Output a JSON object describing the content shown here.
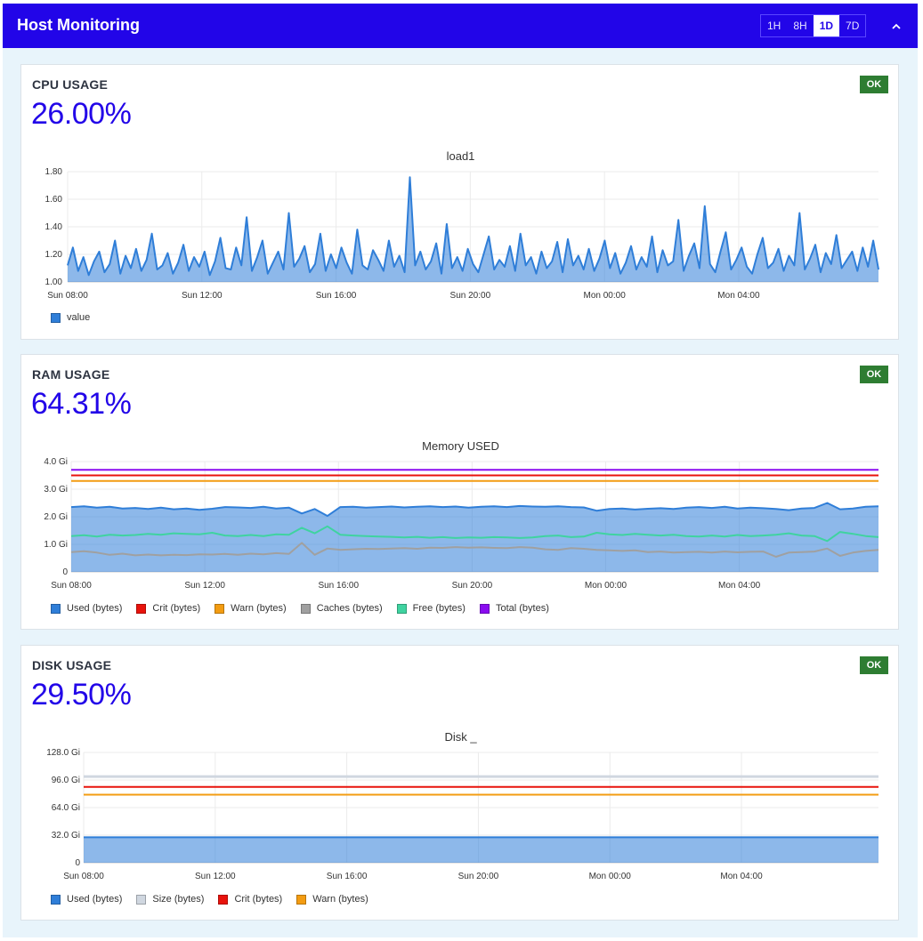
{
  "header": {
    "title": "Host Monitoring",
    "ranges": [
      "1H",
      "8H",
      "1D",
      "7D"
    ],
    "active_range": "1D",
    "collapse_icon": "chevron-up-icon"
  },
  "colors": {
    "header_bg": "#2205e8",
    "accent": "#2205e8",
    "ok_badge": "#2e7d32",
    "used": "#2f7ed8",
    "crit": "#e8130c",
    "warn": "#f39c12",
    "caches": "#a0a0a0",
    "free": "#3fd3a0",
    "total": "#8a0cf0",
    "size": "#d0d7e0"
  },
  "cards": [
    {
      "title": "CPU USAGE",
      "value": "26.00%",
      "status": "OK",
      "chart_title": "load1",
      "legend": [
        "value"
      ]
    },
    {
      "title": "RAM USAGE",
      "value": "64.31%",
      "status": "OK",
      "chart_title": "Memory USED",
      "legend": [
        "Used (bytes)",
        "Crit (bytes)",
        "Warn (bytes)",
        "Caches (bytes)",
        "Free (bytes)",
        "Total (bytes)"
      ]
    },
    {
      "title": "DISK USAGE",
      "value": "29.50%",
      "status": "OK",
      "chart_title": "Disk _",
      "legend": [
        "Used (bytes)",
        "Size (bytes)",
        "Crit (bytes)",
        "Warn (bytes)"
      ]
    }
  ],
  "chart_data": [
    {
      "type": "area",
      "title": "load1",
      "x_ticks": [
        "Sun 08:00",
        "Sun 12:00",
        "Sun 16:00",
        "Sun 20:00",
        "Mon 00:00",
        "Mon 04:00"
      ],
      "x_range": [
        "Sun 08:00",
        "Mon 07:40"
      ],
      "ylim": [
        1.0,
        1.8
      ],
      "y_ticks": [
        "1.00",
        "1.20",
        "1.40",
        "1.60",
        "1.80"
      ],
      "grid": true,
      "legend_position": "bottom-left",
      "series": [
        {
          "name": "value",
          "color": "#2f7ed8",
          "values": [
            1.12,
            1.25,
            1.08,
            1.18,
            1.05,
            1.15,
            1.22,
            1.07,
            1.13,
            1.3,
            1.06,
            1.19,
            1.1,
            1.24,
            1.08,
            1.16,
            1.35,
            1.09,
            1.12,
            1.21,
            1.06,
            1.14,
            1.27,
            1.08,
            1.18,
            1.11,
            1.22,
            1.05,
            1.15,
            1.32,
            1.1,
            1.09,
            1.25,
            1.12,
            1.47,
            1.08,
            1.18,
            1.3,
            1.06,
            1.14,
            1.22,
            1.09,
            1.5,
            1.11,
            1.17,
            1.26,
            1.07,
            1.13,
            1.35,
            1.08,
            1.2,
            1.1,
            1.25,
            1.14,
            1.06,
            1.38,
            1.12,
            1.09,
            1.23,
            1.16,
            1.08,
            1.3,
            1.11,
            1.19,
            1.07,
            1.76,
            1.12,
            1.22,
            1.09,
            1.15,
            1.28,
            1.06,
            1.42,
            1.1,
            1.18,
            1.08,
            1.24,
            1.13,
            1.07,
            1.2,
            1.33,
            1.09,
            1.16,
            1.11,
            1.26,
            1.08,
            1.35,
            1.12,
            1.18,
            1.06,
            1.22,
            1.1,
            1.15,
            1.29,
            1.07,
            1.31,
            1.12,
            1.19,
            1.09,
            1.24,
            1.08,
            1.17,
            1.3,
            1.1,
            1.21,
            1.06,
            1.14,
            1.26,
            1.09,
            1.18,
            1.11,
            1.33,
            1.07,
            1.23,
            1.12,
            1.15,
            1.45,
            1.08,
            1.19,
            1.28,
            1.1,
            1.55,
            1.13,
            1.07,
            1.22,
            1.36,
            1.09,
            1.16,
            1.25,
            1.11,
            1.06,
            1.2,
            1.32,
            1.1,
            1.14,
            1.24,
            1.08,
            1.19,
            1.12,
            1.5,
            1.09,
            1.17,
            1.27,
            1.07,
            1.21,
            1.13,
            1.34,
            1.1,
            1.16,
            1.22,
            1.08,
            1.25,
            1.11,
            1.3,
            1.09
          ]
        }
      ]
    },
    {
      "type": "area",
      "title": "Memory USED",
      "x_ticks": [
        "Sun 08:00",
        "Sun 12:00",
        "Sun 16:00",
        "Sun 20:00",
        "Mon 00:00",
        "Mon 04:00"
      ],
      "x_range": [
        "Sun 08:00",
        "Mon 07:40"
      ],
      "ylim": [
        0,
        4.0
      ],
      "y_ticks": [
        "0",
        "1.0 Gi",
        "2.0 Gi",
        "3.0 Gi",
        "4.0 Gi"
      ],
      "grid": true,
      "legend_position": "bottom-left",
      "series": [
        {
          "name": "Used (bytes)",
          "color": "#2f7ed8",
          "values": [
            2.35,
            2.38,
            2.33,
            2.36,
            2.3,
            2.32,
            2.28,
            2.33,
            2.27,
            2.3,
            2.25,
            2.29,
            2.35,
            2.34,
            2.32,
            2.36,
            2.3,
            2.33,
            2.12,
            2.28,
            2.03,
            2.35,
            2.36,
            2.33,
            2.35,
            2.37,
            2.34,
            2.36,
            2.38,
            2.35,
            2.37,
            2.33,
            2.36,
            2.38,
            2.35,
            2.39,
            2.37,
            2.36,
            2.38,
            2.35,
            2.34,
            2.22,
            2.28,
            2.3,
            2.26,
            2.29,
            2.31,
            2.28,
            2.33,
            2.35,
            2.32,
            2.36,
            2.3,
            2.33,
            2.31,
            2.28,
            2.24,
            2.3,
            2.32,
            2.5,
            2.27,
            2.3,
            2.36,
            2.38
          ]
        },
        {
          "name": "Crit (bytes)",
          "color": "#e8130c",
          "values": [
            3.5
          ]
        },
        {
          "name": "Warn (bytes)",
          "color": "#f39c12",
          "values": [
            3.3
          ]
        },
        {
          "name": "Caches (bytes)",
          "color": "#a0a0a0",
          "values": [
            0.72,
            0.75,
            0.7,
            0.62,
            0.66,
            0.6,
            0.63,
            0.6,
            0.62,
            0.61,
            0.64,
            0.63,
            0.65,
            0.62,
            0.66,
            0.64,
            0.68,
            0.65,
            1.05,
            0.62,
            0.85,
            0.8,
            0.82,
            0.84,
            0.83,
            0.85,
            0.86,
            0.84,
            0.88,
            0.87,
            0.9,
            0.88,
            0.89,
            0.87,
            0.86,
            0.9,
            0.88,
            0.82,
            0.8,
            0.86,
            0.84,
            0.8,
            0.78,
            0.76,
            0.78,
            0.72,
            0.74,
            0.7,
            0.72,
            0.73,
            0.7,
            0.74,
            0.71,
            0.73,
            0.74,
            0.55,
            0.7,
            0.72,
            0.74,
            0.85,
            0.58,
            0.7,
            0.76,
            0.8
          ]
        },
        {
          "name": "Free (bytes)",
          "color": "#3fd3a0",
          "values": [
            1.3,
            1.33,
            1.28,
            1.35,
            1.32,
            1.34,
            1.38,
            1.35,
            1.4,
            1.38,
            1.36,
            1.42,
            1.32,
            1.3,
            1.34,
            1.3,
            1.36,
            1.35,
            1.6,
            1.4,
            1.65,
            1.35,
            1.32,
            1.3,
            1.28,
            1.27,
            1.25,
            1.27,
            1.24,
            1.26,
            1.23,
            1.25,
            1.24,
            1.26,
            1.25,
            1.23,
            1.25,
            1.3,
            1.32,
            1.26,
            1.28,
            1.42,
            1.36,
            1.34,
            1.38,
            1.35,
            1.32,
            1.35,
            1.3,
            1.28,
            1.32,
            1.28,
            1.34,
            1.3,
            1.32,
            1.35,
            1.4,
            1.32,
            1.3,
            1.12,
            1.45,
            1.38,
            1.3,
            1.26
          ]
        },
        {
          "name": "Total (bytes)",
          "color": "#8a0cf0",
          "values": [
            3.7
          ]
        }
      ]
    },
    {
      "type": "area",
      "title": "Disk _",
      "x_ticks": [
        "Sun 08:00",
        "Sun 12:00",
        "Sun 16:00",
        "Sun 20:00",
        "Mon 00:00",
        "Mon 04:00"
      ],
      "x_range": [
        "Sun 08:00",
        "Mon 07:40"
      ],
      "ylim": [
        0,
        128
      ],
      "y_ticks": [
        "0",
        "32.0 Gi",
        "64.0 Gi",
        "96.0 Gi",
        "128.0 Gi"
      ],
      "grid": true,
      "legend_position": "bottom-left",
      "series": [
        {
          "name": "Used (bytes)",
          "color": "#2f7ed8",
          "values": [
            29.5
          ]
        },
        {
          "name": "Size (bytes)",
          "color": "#d0d7e0",
          "values": [
            100
          ]
        },
        {
          "name": "Crit (bytes)",
          "color": "#e8130c",
          "values": [
            88
          ]
        },
        {
          "name": "Warn (bytes)",
          "color": "#f39c12",
          "values": [
            79
          ]
        }
      ]
    }
  ]
}
